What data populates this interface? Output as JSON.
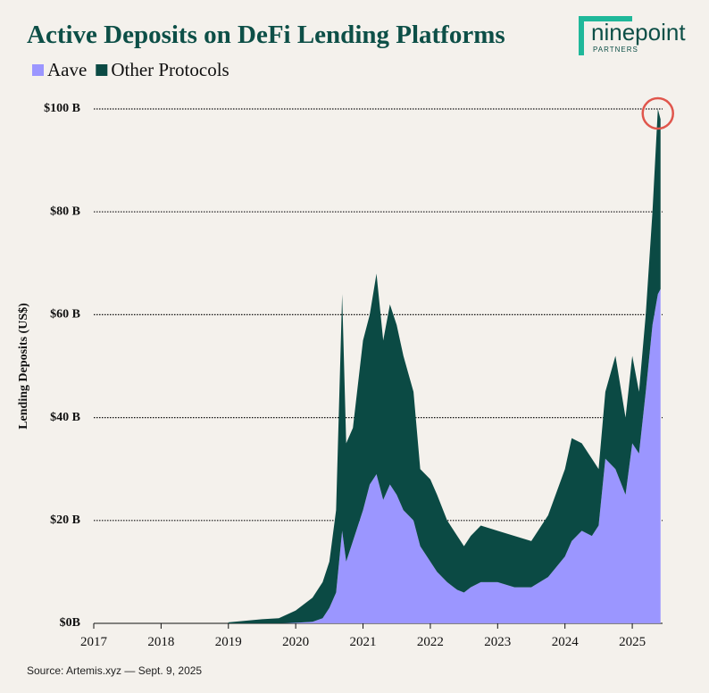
{
  "chart_data": {
    "type": "stacked-area",
    "title": "Active Deposits on DeFi Lending Platforms",
    "logo": {
      "name": "ninepoint",
      "tagline": "PARTNERS"
    },
    "ylabel": "Lending Deposits (US$)",
    "source": "Source: Artemis.xyz — Sept. 9, 2025",
    "x": [
      2019.0,
      2019.25,
      2019.5,
      2019.75,
      2020.0,
      2020.25,
      2020.4,
      2020.5,
      2020.6,
      2020.69,
      2020.75,
      2020.85,
      2021.0,
      2021.1,
      2021.2,
      2021.3,
      2021.4,
      2021.5,
      2021.6,
      2021.75,
      2021.85,
      2022.0,
      2022.1,
      2022.25,
      2022.4,
      2022.5,
      2022.6,
      2022.75,
      2023.0,
      2023.25,
      2023.5,
      2023.75,
      2024.0,
      2024.1,
      2024.25,
      2024.4,
      2024.5,
      2024.6,
      2024.75,
      2024.9,
      2025.0,
      2025.1,
      2025.2,
      2025.3,
      2025.38,
      2025.42
    ],
    "series": [
      {
        "name": "Aave",
        "color": "#9b96ff",
        "values": [
          0,
          0,
          0,
          0,
          0.1,
          0.3,
          1,
          3,
          6,
          18,
          12,
          16,
          22,
          27,
          29,
          24,
          27,
          25,
          22,
          20,
          15,
          12,
          10,
          8,
          6.5,
          6,
          7,
          8,
          8,
          7,
          7,
          9,
          13,
          16,
          18,
          17,
          19,
          32,
          30,
          25,
          35,
          33,
          45,
          58,
          64,
          65
        ]
      },
      {
        "name": "Other Protocols",
        "color": "#0b4a44",
        "values": [
          0.2,
          0.5,
          0.8,
          1,
          2.4,
          4.7,
          7,
          9,
          16,
          46,
          23,
          22,
          33,
          33,
          39,
          31,
          35,
          33,
          30,
          25,
          15,
          16,
          15,
          12,
          10.5,
          9,
          10,
          11,
          10,
          10,
          9,
          12,
          17,
          20,
          17,
          15,
          11,
          13,
          22,
          15,
          17,
          12,
          15,
          22,
          36,
          33
        ]
      }
    ],
    "xlim": [
      2017,
      2025.45
    ],
    "xticks": [
      2017,
      2018,
      2019,
      2020,
      2021,
      2022,
      2023,
      2024,
      2025
    ],
    "ylim": [
      0,
      100
    ],
    "yticks": [
      {
        "value": 0,
        "label": "$0B"
      },
      {
        "value": 20,
        "label": "$20 B"
      },
      {
        "value": 40,
        "label": "$40 B"
      },
      {
        "value": 60,
        "label": "$60 B"
      },
      {
        "value": 80,
        "label": "$80 B"
      },
      {
        "value": 100,
        "label": "$100 B"
      }
    ],
    "grid": true,
    "legend": "top-left"
  }
}
